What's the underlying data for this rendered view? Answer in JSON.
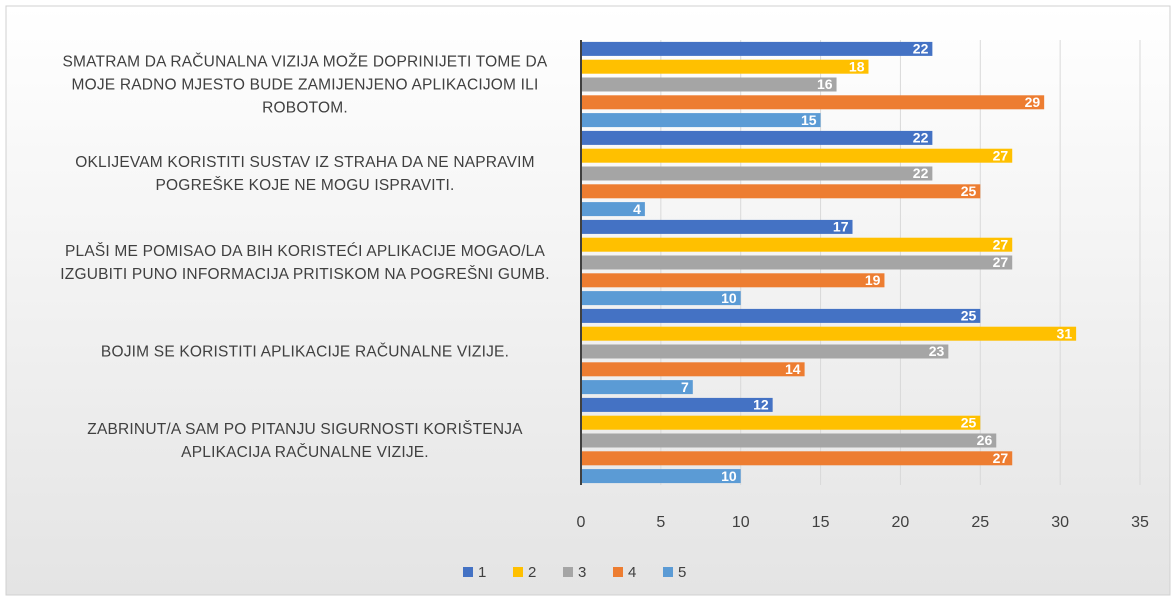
{
  "chart_data": {
    "type": "barh",
    "categories": [
      "SMATRAM DA RAČUNALNA VIZIJA MOŽE DOPRINIJETI TOME DA MOJE RADNO MJESTO BUDE ZAMIJENJENO APLIKACIJOM ILI ROBOTOM.",
      "OKLIJEVAM KORISTITI SUSTAV IZ STRAHA DA NE NAPRAVIM POGREŠKE KOJE NE MOGU ISPRAVITI.",
      "PLAŠI ME POMISAO DA BIH KORISTEĆI APLIKACIJE MOGAO/LA IZGUBITI PUNO INFORMACIJA PRITISKOM NA POGREŠNI GUMB.",
      "BOJIM SE KORISTITI APLIKACIJE RAČUNALNE VIZIJE.",
      "ZABRINUT/A SAM PO PITANJU SIGURNOSTI KORIŠTENJA APLIKACIJA RAČUNALNE VIZIJE."
    ],
    "series": [
      {
        "name": "1",
        "color": "#4472c4",
        "values": [
          22,
          22,
          17,
          25,
          12
        ]
      },
      {
        "name": "2",
        "color": "#ffc000",
        "values": [
          18,
          27,
          27,
          31,
          25
        ]
      },
      {
        "name": "3",
        "color": "#a5a5a5",
        "values": [
          16,
          22,
          27,
          23,
          26
        ]
      },
      {
        "name": "4",
        "color": "#ed7d31",
        "values": [
          29,
          25,
          19,
          14,
          27
        ]
      },
      {
        "name": "5",
        "color": "#5b9bd5",
        "values": [
          15,
          4,
          10,
          7,
          10
        ]
      }
    ],
    "xlim": [
      0,
      35
    ],
    "xticks": [
      0,
      5,
      10,
      15,
      20,
      25,
      30,
      35
    ],
    "grid": true,
    "legend": "bottom"
  }
}
